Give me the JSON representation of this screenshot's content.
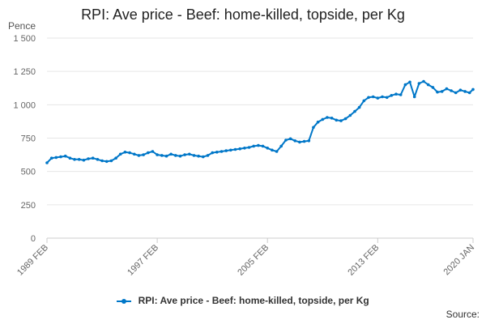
{
  "chart_data": {
    "type": "line",
    "title": "RPI: Ave price - Beef: home-killed, topside, per Kg",
    "ylabel": "Pence",
    "ylim": [
      0,
      1500
    ],
    "yticks": [
      0,
      250,
      500,
      750,
      1000,
      1250,
      1500
    ],
    "ytick_labels": [
      "0",
      "250",
      "500",
      "750",
      "1 000",
      "1 250",
      "1 500"
    ],
    "xticks": [
      {
        "year": 1989,
        "month": 2,
        "label": "1989 FEB"
      },
      {
        "year": 1997,
        "month": 2,
        "label": "1997 FEB"
      },
      {
        "year": 2005,
        "month": 2,
        "label": "2005 FEB"
      },
      {
        "year": 2013,
        "month": 2,
        "label": "2013 FEB"
      },
      {
        "year": 2020,
        "month": 1,
        "label": "2020 JAN"
      }
    ],
    "xlim": [
      "1989-02",
      "2020-01"
    ],
    "grid": true,
    "legend_position": "bottom",
    "series": [
      {
        "name": "RPI: Ave price - Beef: home-killed, topside, per Kg",
        "color": "#0077c8",
        "points": [
          [
            "1989-02",
            565
          ],
          [
            "1989-06",
            600
          ],
          [
            "1989-10",
            605
          ],
          [
            "1990-02",
            610
          ],
          [
            "1990-06",
            615
          ],
          [
            "1990-10",
            600
          ],
          [
            "1991-02",
            590
          ],
          [
            "1991-06",
            590
          ],
          [
            "1991-10",
            585
          ],
          [
            "1992-02",
            595
          ],
          [
            "1992-06",
            600
          ],
          [
            "1992-10",
            590
          ],
          [
            "1993-02",
            580
          ],
          [
            "1993-06",
            575
          ],
          [
            "1993-10",
            580
          ],
          [
            "1994-02",
            600
          ],
          [
            "1994-06",
            630
          ],
          [
            "1994-10",
            645
          ],
          [
            "1995-02",
            640
          ],
          [
            "1995-06",
            630
          ],
          [
            "1995-10",
            620
          ],
          [
            "1996-02",
            625
          ],
          [
            "1996-06",
            640
          ],
          [
            "1996-10",
            650
          ],
          [
            "1997-02",
            625
          ],
          [
            "1997-06",
            620
          ],
          [
            "1997-10",
            615
          ],
          [
            "1998-02",
            630
          ],
          [
            "1998-06",
            620
          ],
          [
            "1998-10",
            615
          ],
          [
            "1999-02",
            625
          ],
          [
            "1999-06",
            630
          ],
          [
            "1999-10",
            620
          ],
          [
            "2000-02",
            615
          ],
          [
            "2000-06",
            610
          ],
          [
            "2000-10",
            620
          ],
          [
            "2001-02",
            640
          ],
          [
            "2001-06",
            645
          ],
          [
            "2001-10",
            650
          ],
          [
            "2002-02",
            655
          ],
          [
            "2002-06",
            660
          ],
          [
            "2002-10",
            665
          ],
          [
            "2003-02",
            670
          ],
          [
            "2003-06",
            675
          ],
          [
            "2003-10",
            680
          ],
          [
            "2004-02",
            690
          ],
          [
            "2004-06",
            695
          ],
          [
            "2004-10",
            690
          ],
          [
            "2005-02",
            675
          ],
          [
            "2005-06",
            660
          ],
          [
            "2005-10",
            650
          ],
          [
            "2006-02",
            690
          ],
          [
            "2006-06",
            735
          ],
          [
            "2006-10",
            745
          ],
          [
            "2007-02",
            730
          ],
          [
            "2007-06",
            720
          ],
          [
            "2007-10",
            725
          ],
          [
            "2008-02",
            730
          ],
          [
            "2008-06",
            830
          ],
          [
            "2008-10",
            870
          ],
          [
            "2009-02",
            890
          ],
          [
            "2009-06",
            905
          ],
          [
            "2009-10",
            900
          ],
          [
            "2010-02",
            885
          ],
          [
            "2010-06",
            880
          ],
          [
            "2010-10",
            895
          ],
          [
            "2011-02",
            920
          ],
          [
            "2011-06",
            950
          ],
          [
            "2011-10",
            980
          ],
          [
            "2012-02",
            1030
          ],
          [
            "2012-06",
            1055
          ],
          [
            "2012-10",
            1060
          ],
          [
            "2013-02",
            1050
          ],
          [
            "2013-06",
            1060
          ],
          [
            "2013-10",
            1055
          ],
          [
            "2014-02",
            1070
          ],
          [
            "2014-06",
            1080
          ],
          [
            "2014-10",
            1075
          ],
          [
            "2015-02",
            1150
          ],
          [
            "2015-06",
            1170
          ],
          [
            "2015-10",
            1060
          ],
          [
            "2016-02",
            1160
          ],
          [
            "2016-06",
            1175
          ],
          [
            "2016-10",
            1150
          ],
          [
            "2017-02",
            1130
          ],
          [
            "2017-06",
            1095
          ],
          [
            "2017-10",
            1100
          ],
          [
            "2018-02",
            1120
          ],
          [
            "2018-06",
            1105
          ],
          [
            "2018-10",
            1090
          ],
          [
            "2019-02",
            1110
          ],
          [
            "2019-06",
            1100
          ],
          [
            "2019-10",
            1090
          ],
          [
            "2020-01",
            1115
          ]
        ]
      }
    ]
  },
  "footer": {
    "source_label": "Source:"
  }
}
